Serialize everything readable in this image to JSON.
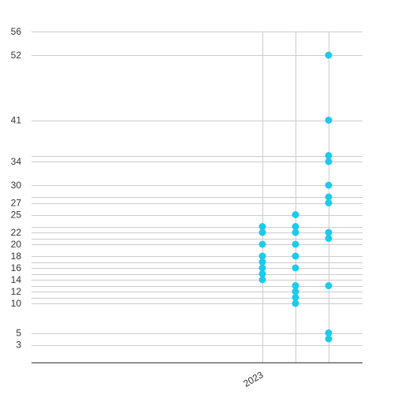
{
  "chart_data": {
    "type": "scatter",
    "title": "",
    "xlabel": "",
    "ylabel": "",
    "x_tick_labels": [
      {
        "label": "2023",
        "column": 0
      }
    ],
    "y_ticks": [
      3,
      5,
      10,
      11,
      12,
      13,
      14,
      15,
      16,
      17,
      18,
      20,
      21,
      22,
      23,
      25,
      27,
      28,
      30,
      34,
      35,
      41,
      52,
      56
    ],
    "y_tick_labels": [
      "3",
      "5",
      "10",
      "12",
      "14",
      "16",
      "18",
      "20",
      "22",
      "25",
      "27",
      "30",
      "34",
      "41",
      "52",
      "56"
    ],
    "ylim": [
      0,
      56
    ],
    "grid": true,
    "legend": "none",
    "marker_color": "#1ccbeb",
    "series": [
      {
        "points": [
          {
            "column": 0,
            "y": 23
          },
          {
            "column": 0,
            "y": 22
          },
          {
            "column": 0,
            "y": 20
          },
          {
            "column": 0,
            "y": 18
          },
          {
            "column": 0,
            "y": 17
          },
          {
            "column": 0,
            "y": 16
          },
          {
            "column": 0,
            "y": 15
          },
          {
            "column": 0,
            "y": 14
          },
          {
            "column": 1,
            "y": 25
          },
          {
            "column": 1,
            "y": 23
          },
          {
            "column": 1,
            "y": 22
          },
          {
            "column": 1,
            "y": 20
          },
          {
            "column": 1,
            "y": 18
          },
          {
            "column": 1,
            "y": 16
          },
          {
            "column": 1,
            "y": 13
          },
          {
            "column": 1,
            "y": 12
          },
          {
            "column": 1,
            "y": 11
          },
          {
            "column": 1,
            "y": 10
          },
          {
            "column": 2,
            "y": 52
          },
          {
            "column": 2,
            "y": 41
          },
          {
            "column": 2,
            "y": 35
          },
          {
            "column": 2,
            "y": 34
          },
          {
            "column": 2,
            "y": 30
          },
          {
            "column": 2,
            "y": 28
          },
          {
            "column": 2,
            "y": 27
          },
          {
            "column": 2,
            "y": 22
          },
          {
            "column": 2,
            "y": 21
          },
          {
            "column": 2,
            "y": 13
          },
          {
            "column": 2,
            "y": 5
          },
          {
            "column": 2,
            "y": 4
          }
        ]
      }
    ]
  }
}
